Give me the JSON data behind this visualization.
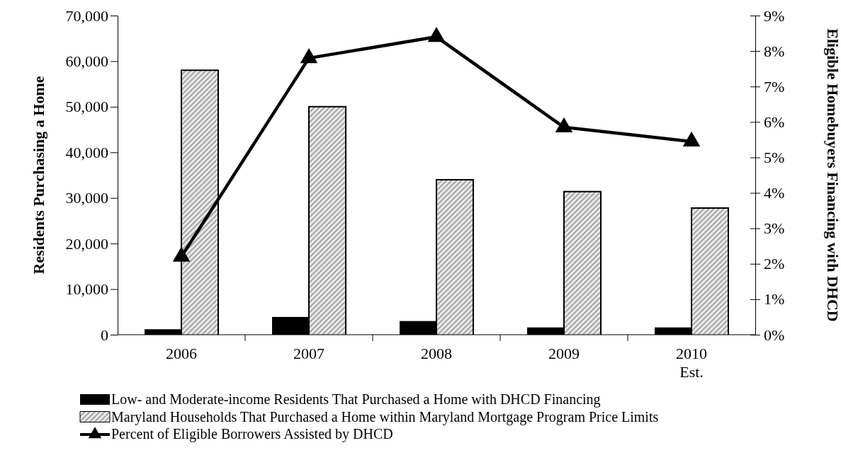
{
  "chart_data": {
    "type": "bar",
    "categories": [
      "2006",
      "2007",
      "2008",
      "2009",
      "2010\nEst."
    ],
    "ylabel": "Residents Purchasing a Home",
    "y2label": "Eligible Homebuyers Financing with DHCD",
    "ylim": [
      0,
      70000
    ],
    "yticks": [
      {
        "value": 0,
        "label": "0"
      },
      {
        "value": 10000,
        "label": "10,000"
      },
      {
        "value": 20000,
        "label": "20,000"
      },
      {
        "value": 30000,
        "label": "30,000"
      },
      {
        "value": 40000,
        "label": "40,000"
      },
      {
        "value": 50000,
        "label": "50,000"
      },
      {
        "value": 60000,
        "label": "60,000"
      },
      {
        "value": 70000,
        "label": "70,000"
      }
    ],
    "y2lim": [
      0,
      9
    ],
    "y2ticks": [
      {
        "value": 0,
        "label": "0%"
      },
      {
        "value": 1,
        "label": "1%"
      },
      {
        "value": 2,
        "label": "2%"
      },
      {
        "value": 3,
        "label": "3%"
      },
      {
        "value": 4,
        "label": "4%"
      },
      {
        "value": 5,
        "label": "5%"
      },
      {
        "value": 6,
        "label": "6%"
      },
      {
        "value": 7,
        "label": "7%"
      },
      {
        "value": 8,
        "label": "8%"
      },
      {
        "value": 9,
        "label": "9%"
      }
    ],
    "series": [
      {
        "name": "Low- and Moderate-income Residents That Purchased a Home with DHCD Financing",
        "color": "#000000",
        "values": [
          1200,
          3900,
          3000,
          1600,
          1600
        ]
      },
      {
        "name": "Maryland Households That Purchased a Home within Maryland Mortgage Program Price Limits",
        "color": "#a6a6a6",
        "values": [
          58000,
          50000,
          34000,
          31400,
          27800
        ]
      },
      {
        "name": "Percent of Eligible Borrowers Assisted by DHCD",
        "type": "line",
        "axis": "y2",
        "color": "#000000",
        "values": [
          2.2,
          7.8,
          8.4,
          5.85,
          5.45
        ]
      }
    ],
    "marker": "triangle",
    "line_style": "solid",
    "grid": false,
    "legend": "bottom"
  }
}
